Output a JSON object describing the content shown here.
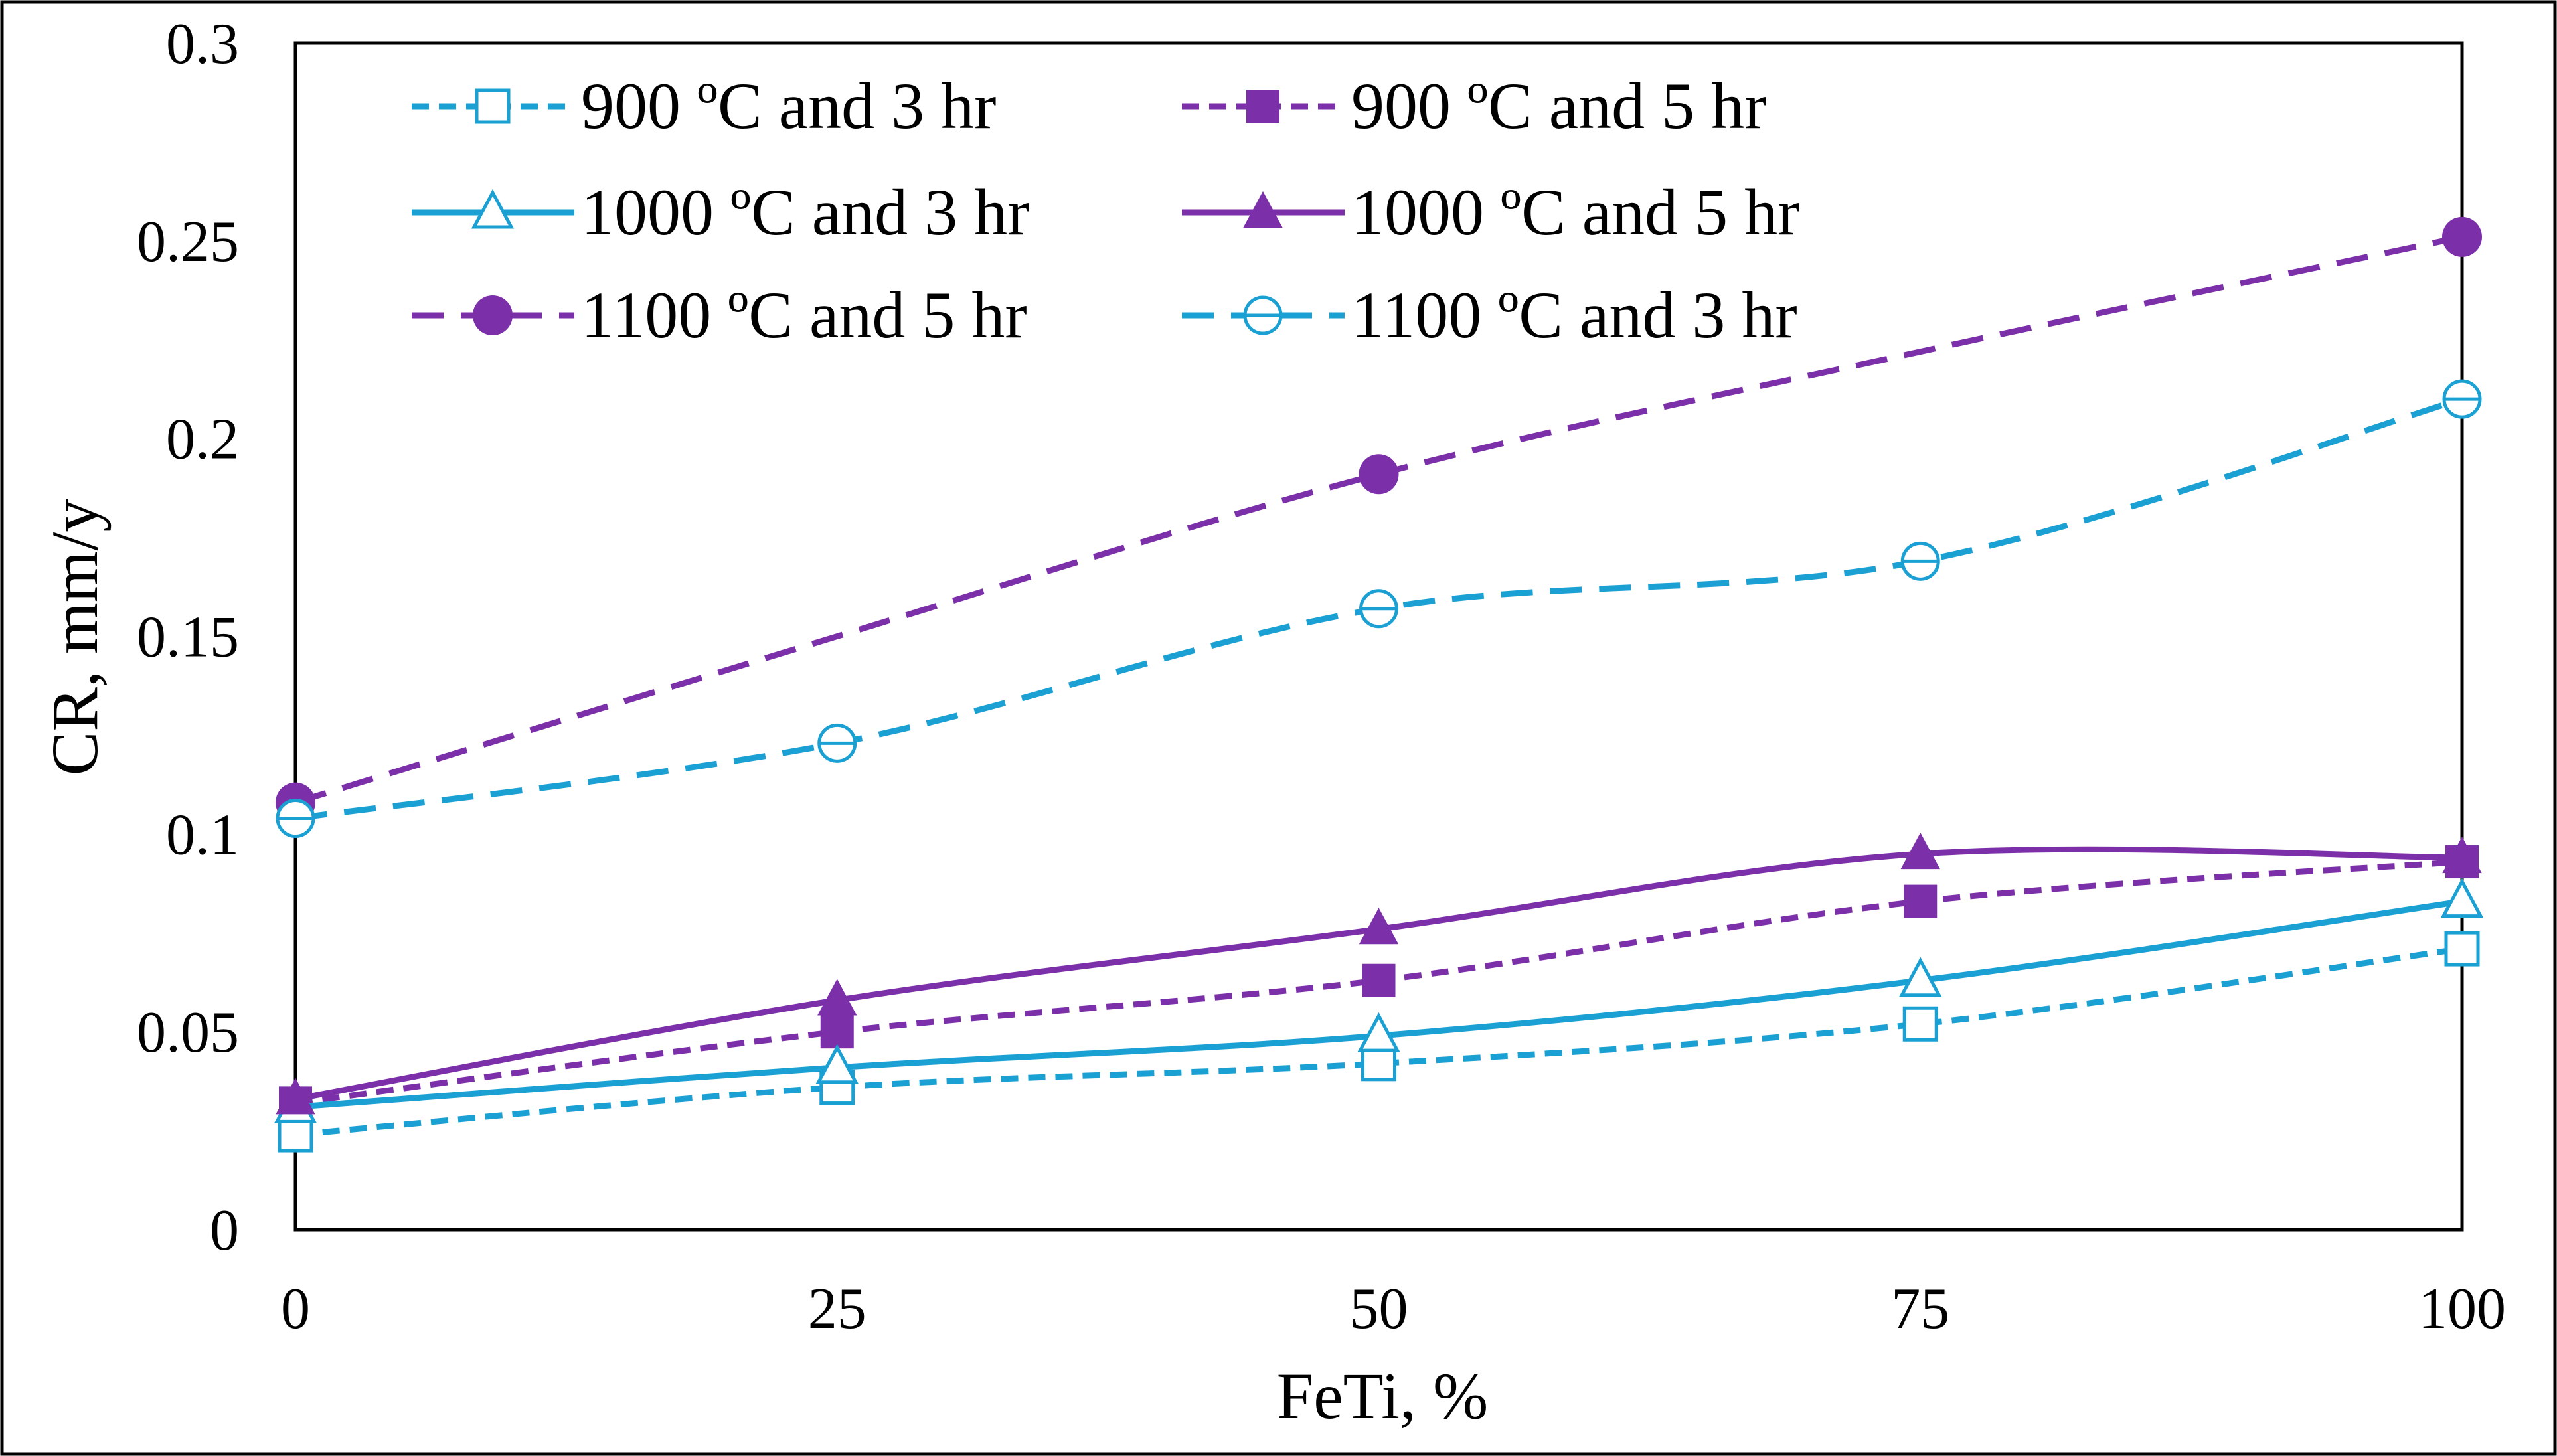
{
  "chart_data": {
    "type": "line",
    "title": "",
    "xlabel": "FeTi, %",
    "ylabel": "CR, mm/y",
    "x": [
      0,
      25,
      50,
      75,
      100
    ],
    "xlim": [
      0,
      100
    ],
    "ylim": [
      0,
      0.3
    ],
    "x_ticks": [
      "0",
      "25",
      "50",
      "75",
      "100"
    ],
    "y_ticks": [
      "0",
      "0.05",
      "0.1",
      "0.15",
      "0.2",
      "0.25",
      "0.3"
    ],
    "grid": false,
    "legend_position": "top",
    "series": [
      {
        "name": "900 ºC and 3 hr",
        "values": [
          0.024,
          0.036,
          0.042,
          0.052,
          0.071
        ],
        "color": "#1aa0d2",
        "dash": "short",
        "marker": "open-square"
      },
      {
        "name": "900 ºC and 5 hr",
        "values": [
          0.032,
          0.05,
          0.063,
          0.083,
          0.093
        ],
        "color": "#7b2fa8",
        "dash": "short",
        "marker": "filled-square"
      },
      {
        "name": "1000 ºC and 3 hr",
        "values": [
          0.031,
          0.041,
          0.049,
          0.063,
          0.083
        ],
        "color": "#1aa0d2",
        "dash": "solid",
        "marker": "open-triangle"
      },
      {
        "name": "1000 ºC and 5 hr",
        "values": [
          0.033,
          0.058,
          0.076,
          0.095,
          0.094
        ],
        "color": "#7b2fa8",
        "dash": "solid",
        "marker": "filled-triangle"
      },
      {
        "name": "1100 ºC and 5 hr",
        "values": [
          0.108,
          0.15,
          0.191,
          0.222,
          0.251
        ],
        "color": "#7b2fa8",
        "dash": "long",
        "marker": "filled-circle",
        "marked": [
          true,
          false,
          true,
          false,
          true
        ]
      },
      {
        "name": "1100 ºC and 3 hr",
        "values": [
          0.104,
          0.123,
          0.157,
          0.169,
          0.21
        ],
        "color": "#1aa0d2",
        "dash": "long",
        "marker": "open-circle-bar"
      }
    ]
  }
}
